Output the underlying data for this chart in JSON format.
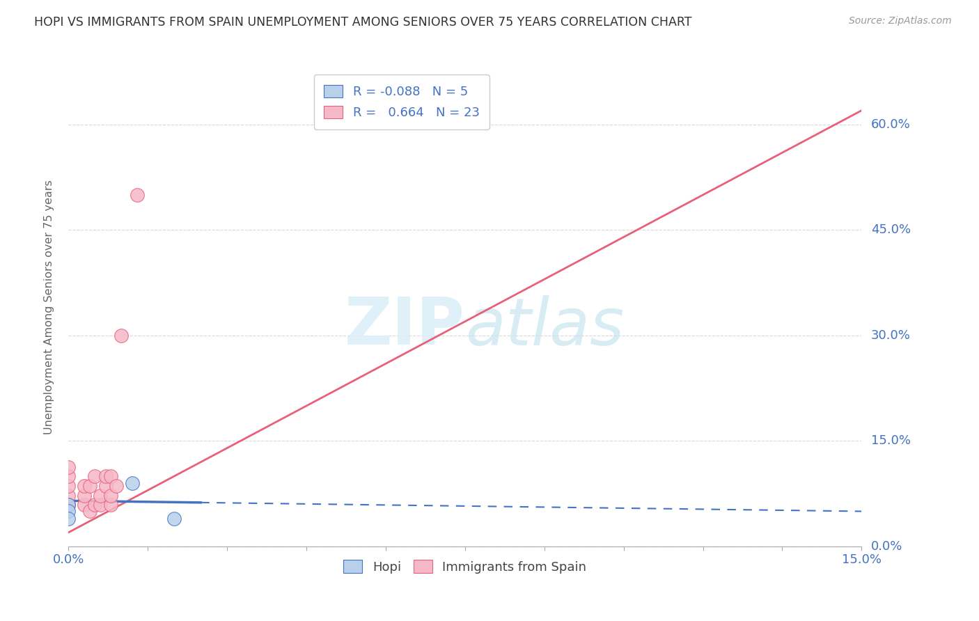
{
  "title": "HOPI VS IMMIGRANTS FROM SPAIN UNEMPLOYMENT AMONG SENIORS OVER 75 YEARS CORRELATION CHART",
  "source": "Source: ZipAtlas.com",
  "ylabel": "Unemployment Among Seniors over 75 years",
  "xlim": [
    0.0,
    0.15
  ],
  "ylim": [
    0.0,
    0.68
  ],
  "ytick_right_labels": [
    "0.0%",
    "15.0%",
    "30.0%",
    "45.0%",
    "60.0%"
  ],
  "ytick_right_vals": [
    0.0,
    0.15,
    0.3,
    0.45,
    0.6
  ],
  "xtick_labels": [
    "0.0%",
    "",
    "",
    "",
    "",
    "",
    "",
    "",
    "",
    "",
    "15.0%"
  ],
  "hopi_R": -0.088,
  "hopi_N": 5,
  "spain_R": 0.664,
  "spain_N": 23,
  "hopi_color": "#b8d0ea",
  "spain_color": "#f5b8c8",
  "hopi_line_color": "#4472c4",
  "spain_line_color": "#e8607a",
  "hopi_scatter_x": [
    0.0,
    0.0,
    0.0,
    0.012,
    0.02
  ],
  "hopi_scatter_y": [
    0.059,
    0.05,
    0.04,
    0.09,
    0.04
  ],
  "spain_scatter_x": [
    0.0,
    0.0,
    0.0,
    0.0,
    0.0,
    0.0,
    0.003,
    0.003,
    0.003,
    0.004,
    0.004,
    0.005,
    0.005,
    0.006,
    0.006,
    0.007,
    0.007,
    0.008,
    0.008,
    0.008,
    0.009,
    0.01,
    0.013
  ],
  "spain_scatter_y": [
    0.059,
    0.059,
    0.072,
    0.086,
    0.1,
    0.113,
    0.059,
    0.072,
    0.086,
    0.05,
    0.086,
    0.059,
    0.1,
    0.059,
    0.072,
    0.086,
    0.1,
    0.059,
    0.072,
    0.1,
    0.086,
    0.3,
    0.5
  ],
  "watermark_zip": "ZIP",
  "watermark_atlas": "atlas",
  "background_color": "#ffffff",
  "grid_color": "#d0d0d0"
}
